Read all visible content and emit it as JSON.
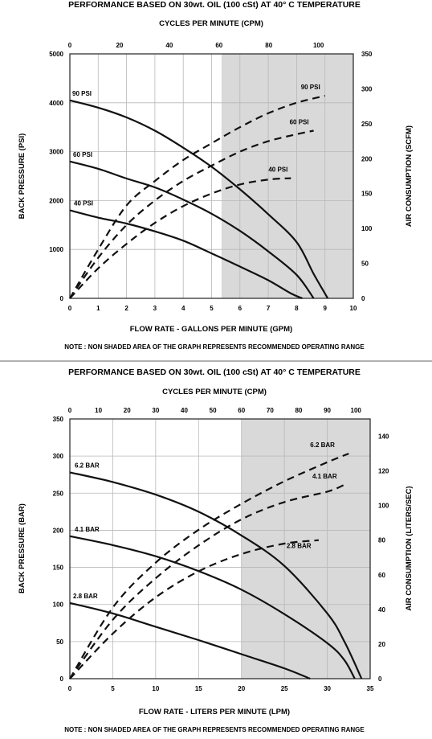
{
  "chart_data": [
    {
      "type": "line",
      "title": "PERFORMANCE  BASED ON 30wt. OIL (100 cSt) AT 40° C TEMPERATURE",
      "x2label": "CYCLES PER MINUTE (CPM)",
      "xlabel": "FLOW RATE - GALLONS PER MINUTE (GPM)",
      "ylabel": "BACK PRESSURE  (PSI)",
      "y2label": "AIR CONSUMPTION  (SCFM)",
      "note": "NOTE : NON SHADED AREA OF THE GRAPH REPRESENTS RECOMMENDED OPERATING RANGE",
      "xlim": [
        0,
        10
      ],
      "x2lim": [
        0,
        114
      ],
      "ylim": [
        0,
        5000
      ],
      "y2lim": [
        0,
        350
      ],
      "xticks": [
        0,
        1,
        2,
        3,
        4,
        5,
        6,
        7,
        8,
        9,
        10
      ],
      "x2ticks": [
        0,
        20,
        40,
        60,
        80,
        100
      ],
      "yticks": [
        0,
        1000,
        2000,
        3000,
        4000,
        5000
      ],
      "y2ticks": [
        0,
        50,
        100,
        150,
        200,
        250,
        300,
        350
      ],
      "shaded_from_x": 5.35,
      "series": [
        {
          "name": "90 PSI",
          "kind": "pressure",
          "x": [
            0,
            1,
            2,
            3,
            4,
            5,
            6,
            7,
            8,
            8.6,
            9.1
          ],
          "y": [
            4050,
            3900,
            3700,
            3430,
            3080,
            2690,
            2230,
            1720,
            1150,
            500,
            0
          ]
        },
        {
          "name": "60 PSI",
          "kind": "pressure",
          "x": [
            0,
            1,
            2,
            3,
            4,
            5,
            6,
            7,
            8,
            8.6
          ],
          "y": [
            2800,
            2650,
            2450,
            2270,
            2020,
            1730,
            1380,
            960,
            480,
            0
          ]
        },
        {
          "name": "40 PSI",
          "kind": "pressure",
          "x": [
            0,
            1,
            2,
            3,
            4,
            5,
            6,
            7,
            7.8,
            8.2
          ],
          "y": [
            1800,
            1650,
            1530,
            1370,
            1180,
            920,
            650,
            370,
            100,
            0
          ]
        },
        {
          "name": "90 PSI",
          "kind": "air",
          "x": [
            0,
            1,
            2,
            3,
            4,
            5,
            6,
            7,
            8,
            9
          ],
          "y": [
            0,
            70,
            133,
            168,
            198,
            222,
            245,
            265,
            280,
            290
          ]
        },
        {
          "name": "60 PSI",
          "kind": "air",
          "x": [
            0,
            1,
            2,
            3,
            4,
            5,
            6,
            7,
            8,
            8.6
          ],
          "y": [
            0,
            58,
            105,
            140,
            168,
            190,
            210,
            225,
            235,
            240
          ]
        },
        {
          "name": "40 PSI",
          "kind": "air",
          "x": [
            0,
            1,
            2,
            3,
            4,
            5,
            6,
            7,
            7.8
          ],
          "y": [
            0,
            43,
            78,
            108,
            132,
            150,
            163,
            170,
            172
          ]
        }
      ]
    },
    {
      "type": "line",
      "title": "PERFORMANCE  BASED ON 30wt. OIL (100 cSt) AT 40° C TEMPERATURE",
      "x2label": "CYCLES PER MINUTE (CPM)",
      "xlabel": "FLOW RATE - LITERS PER MINUTE (LPM)",
      "ylabel": "BACK PRESSURE (BAR)",
      "y2label": "AIR CONSUMPTION  (LITERS/SEC)",
      "note": "NOTE : NON SHADED AREA OF THE GRAPH REPRESENTS RECOMMENDED OPERATING RANGE",
      "xlim": [
        0,
        35
      ],
      "x2lim": [
        0,
        105
      ],
      "ylim": [
        0,
        350
      ],
      "y2lim": [
        0,
        150
      ],
      "xticks": [
        0,
        5,
        10,
        15,
        20,
        25,
        30,
        35
      ],
      "x2ticks": [
        0,
        10,
        20,
        30,
        40,
        50,
        60,
        70,
        80,
        90,
        100
      ],
      "yticks": [
        0,
        50,
        100,
        150,
        200,
        250,
        300,
        350
      ],
      "y2ticks": [
        0,
        20,
        40,
        60,
        80,
        100,
        120,
        140
      ],
      "shaded_from_x": 20,
      "series": [
        {
          "name": "6.2 BAR",
          "kind": "pressure",
          "x": [
            0,
            5,
            10,
            15,
            20,
            25,
            30,
            32,
            34
          ],
          "y": [
            278,
            265,
            248,
            225,
            193,
            152,
            88,
            50,
            0
          ]
        },
        {
          "name": "4.1 BAR",
          "kind": "pressure",
          "x": [
            0,
            5,
            10,
            15,
            20,
            25,
            30,
            32,
            33.2
          ],
          "y": [
            192,
            180,
            165,
            145,
            120,
            87,
            48,
            25,
            0
          ]
        },
        {
          "name": "2.8 BAR",
          "kind": "pressure",
          "x": [
            0,
            5,
            10,
            15,
            20,
            25,
            28
          ],
          "y": [
            102,
            88,
            70,
            52,
            33,
            14,
            0
          ]
        },
        {
          "name": "6.2 BAR",
          "kind": "air",
          "x": [
            0,
            5,
            10,
            15,
            20,
            25,
            30,
            32.5
          ],
          "y": [
            0,
            41,
            67,
            86,
            101,
            114,
            125,
            130
          ]
        },
        {
          "name": "4.1 BAR",
          "kind": "air",
          "x": [
            0,
            5,
            10,
            15,
            20,
            25,
            30,
            32
          ],
          "y": [
            0,
            34,
            58,
            77,
            92,
            102,
            108,
            112
          ]
        },
        {
          "name": "2.8 BAR",
          "kind": "air",
          "x": [
            0,
            5,
            10,
            15,
            20,
            25,
            29
          ],
          "y": [
            0,
            26,
            47,
            62,
            72,
            78,
            80
          ]
        }
      ]
    }
  ]
}
